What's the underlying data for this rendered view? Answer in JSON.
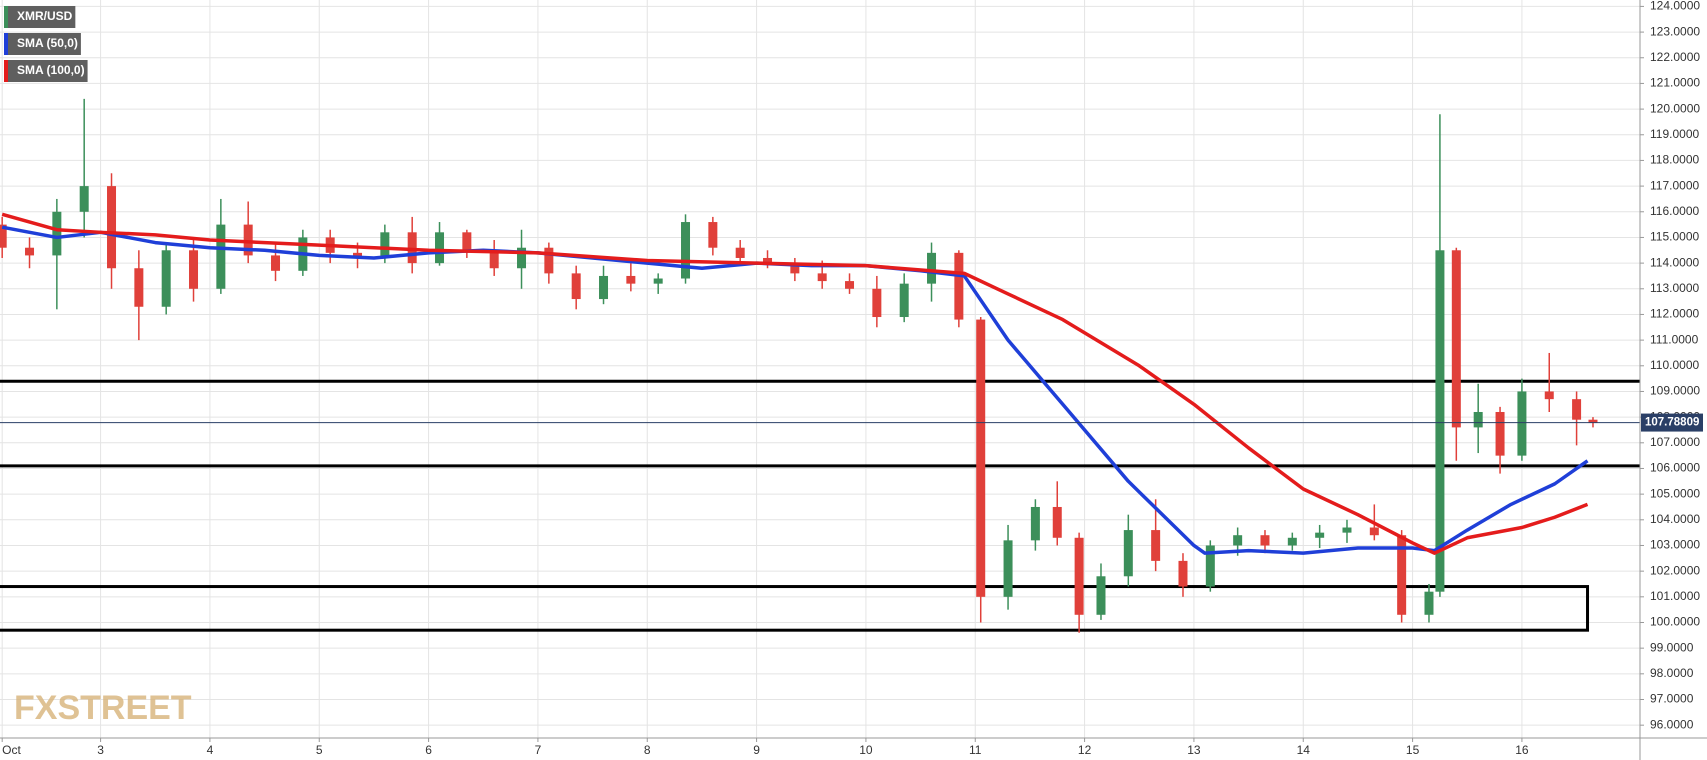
{
  "chart_data": {
    "type": "candlestick",
    "watermark": "FXSTREET",
    "xlim": [
      2.08,
      17.08
    ],
    "ylim": [
      95.5,
      124.25
    ],
    "xticks": [
      {
        "value": 2.1,
        "label": "Oct"
      },
      3,
      4,
      5,
      6,
      7,
      8,
      9,
      10,
      11,
      12,
      13,
      14,
      15,
      16
    ],
    "yticks": [
      {
        "value": 96,
        "label": "96.0000"
      },
      {
        "value": 97,
        "label": "97.0000"
      },
      {
        "value": 98,
        "label": "98.0000"
      },
      {
        "value": 99,
        "label": "99.0000"
      },
      {
        "value": 100,
        "label": "100.0000"
      },
      {
        "value": 101,
        "label": "101.0000"
      },
      {
        "value": 102,
        "label": "102.0000"
      },
      {
        "value": 103,
        "label": "103.0000"
      },
      {
        "value": 104,
        "label": "104.0000"
      },
      {
        "value": 105,
        "label": "105.0000"
      },
      {
        "value": 106,
        "label": "106.0000"
      },
      {
        "value": 107,
        "label": "107.0000"
      },
      {
        "value": 108,
        "label": "108.0000"
      },
      {
        "value": 109,
        "label": "109.0000"
      },
      {
        "value": 110,
        "label": "110.0000"
      },
      {
        "value": 111,
        "label": "111.0000"
      },
      {
        "value": 112,
        "label": "112.0000"
      },
      {
        "value": 113,
        "label": "113.0000"
      },
      {
        "value": 114,
        "label": "114.0000"
      },
      {
        "value": 115,
        "label": "115.0000"
      },
      {
        "value": 116,
        "label": "116.0000"
      },
      {
        "value": 117,
        "label": "117.0000"
      },
      {
        "value": 118,
        "label": "118.0000"
      },
      {
        "value": 119,
        "label": "119.0000"
      },
      {
        "value": 120,
        "label": "120.0000"
      },
      {
        "value": 121,
        "label": "121.0000"
      },
      {
        "value": 122,
        "label": "122.0000"
      },
      {
        "value": 123,
        "label": "123.0000"
      },
      {
        "value": 124,
        "label": "124.0000"
      }
    ],
    "grid": true,
    "candles": {
      "name": "XMR/USD",
      "color": "#3c8f5a",
      "up_color": "#3c8f5a",
      "down_color": "#e0403a",
      "x": [
        2.1,
        2.35,
        2.6,
        2.85,
        3.1,
        3.35,
        3.6,
        3.85,
        4.1,
        4.35,
        4.6,
        4.85,
        5.1,
        5.35,
        5.6,
        5.85,
        6.1,
        6.35,
        6.6,
        6.85,
        7.1,
        7.35,
        7.6,
        7.85,
        8.1,
        8.35,
        8.6,
        8.85,
        9.1,
        9.35,
        9.6,
        9.85,
        10.1,
        10.35,
        10.6,
        10.85,
        11.05,
        11.3,
        11.55,
        11.75,
        11.95,
        12.15,
        12.4,
        12.65,
        12.9,
        13.15,
        13.4,
        13.65,
        13.9,
        14.15,
        14.4,
        14.65,
        14.9,
        15.15,
        15.25,
        15.4,
        15.6,
        15.8,
        16.0,
        16.25,
        16.5,
        16.65
      ],
      "open": [
        115.5,
        114.6,
        114.3,
        116.0,
        117.0,
        113.8,
        112.3,
        114.5,
        113.0,
        115.5,
        114.3,
        113.7,
        115.0,
        114.4,
        114.2,
        115.2,
        114.0,
        115.2,
        114.5,
        113.8,
        114.6,
        113.6,
        112.6,
        113.5,
        113.2,
        113.4,
        115.6,
        114.6,
        114.2,
        114.0,
        113.6,
        113.3,
        113.0,
        111.9,
        113.2,
        114.4,
        111.8,
        101.0,
        103.2,
        104.5,
        103.3,
        100.3,
        101.8,
        103.6,
        102.4,
        101.4,
        103.0,
        103.4,
        103.0,
        103.3,
        103.5,
        103.7,
        103.4,
        100.3,
        101.2,
        114.5,
        107.6,
        108.2,
        106.5,
        109.0,
        108.7,
        107.9
      ],
      "high": [
        115.8,
        115.0,
        116.5,
        120.4,
        117.5,
        114.5,
        114.8,
        115.0,
        116.5,
        116.4,
        114.8,
        115.3,
        115.3,
        114.8,
        115.5,
        115.8,
        115.6,
        115.3,
        114.9,
        115.3,
        114.8,
        113.9,
        113.9,
        114.0,
        113.6,
        115.9,
        115.8,
        114.9,
        114.5,
        114.2,
        114.1,
        113.6,
        113.5,
        113.6,
        114.8,
        114.5,
        111.9,
        103.8,
        104.8,
        105.5,
        103.5,
        102.3,
        104.2,
        104.8,
        102.7,
        103.2,
        103.7,
        103.6,
        103.5,
        103.8,
        104.0,
        104.6,
        103.6,
        101.5,
        119.8,
        114.6,
        109.3,
        108.4,
        109.5,
        110.5,
        109.0,
        108.0
      ],
      "low": [
        114.2,
        113.8,
        112.2,
        115.0,
        113.0,
        111.0,
        112.0,
        112.5,
        112.8,
        114.0,
        113.3,
        113.5,
        114.0,
        113.8,
        114.0,
        113.6,
        113.9,
        114.2,
        113.5,
        113.0,
        113.2,
        112.2,
        112.4,
        112.9,
        112.8,
        113.2,
        114.3,
        113.9,
        113.8,
        113.3,
        113.0,
        112.8,
        111.5,
        111.7,
        112.5,
        111.5,
        100.0,
        100.5,
        102.8,
        103.0,
        99.6,
        100.1,
        101.4,
        102.0,
        101.0,
        101.2,
        102.6,
        102.7,
        102.8,
        102.9,
        103.1,
        103.2,
        100.0,
        100.0,
        101.0,
        106.3,
        106.6,
        105.8,
        106.3,
        108.2,
        106.9,
        107.6
      ],
      "close": [
        114.6,
        114.3,
        116.0,
        117.0,
        113.8,
        112.3,
        114.5,
        113.0,
        115.5,
        114.3,
        113.7,
        115.0,
        114.4,
        114.2,
        115.2,
        114.0,
        115.2,
        114.5,
        113.8,
        114.6,
        113.6,
        112.6,
        113.5,
        113.2,
        113.4,
        115.6,
        114.6,
        114.2,
        114.0,
        113.6,
        113.3,
        113.0,
        111.9,
        113.2,
        114.4,
        111.8,
        101.0,
        103.2,
        104.5,
        103.3,
        100.3,
        101.8,
        103.6,
        102.4,
        101.4,
        103.0,
        103.4,
        103.0,
        103.3,
        103.5,
        103.7,
        103.4,
        100.3,
        101.2,
        114.5,
        107.6,
        108.2,
        106.5,
        109.0,
        108.7,
        107.9,
        107.79
      ]
    },
    "series": [
      {
        "name": "SMA (50,0)",
        "color": "#1f3fd8",
        "x": [
          2.1,
          2.6,
          3,
          3.5,
          4,
          4.5,
          5,
          5.5,
          6,
          6.5,
          7,
          7.5,
          8,
          8.5,
          9,
          9.5,
          10,
          10.5,
          10.9,
          11.3,
          11.8,
          12.4,
          13,
          13.1,
          13.5,
          14,
          14.5,
          15,
          15.2,
          15.5,
          15.9,
          16.3,
          16.6
        ],
        "values": [
          115.4,
          115.0,
          115.2,
          114.8,
          114.6,
          114.5,
          114.3,
          114.2,
          114.4,
          114.5,
          114.4,
          114.2,
          114.0,
          113.8,
          114.0,
          113.9,
          113.9,
          113.7,
          113.5,
          111.0,
          108.5,
          105.5,
          103.0,
          102.7,
          102.8,
          102.7,
          102.9,
          102.9,
          102.8,
          103.6,
          104.6,
          105.4,
          106.3
        ]
      },
      {
        "name": "SMA (100,0)",
        "color": "#e41c1c",
        "x": [
          2.1,
          2.6,
          3,
          3.5,
          4,
          5,
          6,
          7,
          8,
          9,
          10,
          10.9,
          11.3,
          11.8,
          12.5,
          13,
          13.5,
          14,
          14.5,
          15,
          15.2,
          15.5,
          16,
          16.3,
          16.6
        ],
        "values": [
          115.9,
          115.3,
          115.2,
          115.1,
          114.9,
          114.7,
          114.5,
          114.4,
          114.1,
          114.0,
          113.9,
          113.6,
          112.8,
          111.8,
          110.0,
          108.5,
          106.8,
          105.2,
          104.2,
          103.1,
          102.7,
          103.3,
          103.7,
          104.1,
          104.6
        ]
      }
    ],
    "levels": [
      109.4,
      106.1
    ],
    "zone": {
      "low": 99.7,
      "high": 101.4
    },
    "last_price": 107.78809
  }
}
